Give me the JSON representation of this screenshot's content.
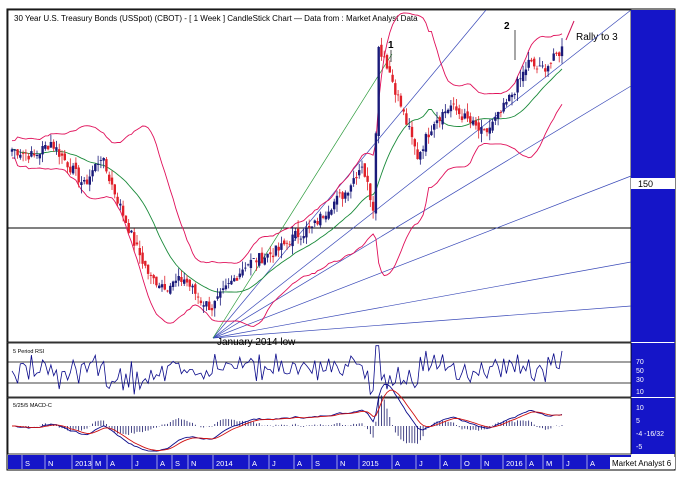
{
  "header": {
    "title": "30 Year U.S. Treasury Bonds (USSpot) (CBOT) - [ 1 Week ] CandleStick Chart — Data from : Market Analyst Data"
  },
  "price_pane": {
    "y_tick": "150",
    "annotations": {
      "wave1": "1",
      "wave2": "2",
      "rally": "Rally to 3",
      "low": "January 2014 low"
    }
  },
  "rsi_pane": {
    "title": "5 Period RSI",
    "ticks": [
      "70",
      "50",
      "30",
      "10"
    ]
  },
  "macd_pane": {
    "title": "5/25/5 MACD-C",
    "ticks": [
      "10",
      "5",
      "-4 -16/32",
      "-5"
    ]
  },
  "time_axis": {
    "labels": [
      "S",
      "N",
      "2013",
      "M",
      "A",
      "J",
      "A",
      "S",
      "N",
      "2014",
      "A",
      "J",
      "A",
      "S",
      "N",
      "2015",
      "A",
      "J",
      "A",
      "O",
      "N",
      "2016",
      "A",
      "M",
      "J",
      "A"
    ],
    "footer": "Market Analyst 6"
  },
  "colors": {
    "bear_candle": "#e0202a",
    "bull_candle": "#1a1a7a",
    "bollinger": "#e0105a",
    "moving_average": "#1a8a3a",
    "gann_fan": "#3a4ab8",
    "gann_steep": "#2a9a3a",
    "indicator_line": "#0a0a8a",
    "macd_signal": "#d01010",
    "axis_band": "#1515c8"
  },
  "chart_data": {
    "type": "candlestick",
    "timeframe": "1 Week",
    "x_labels": [
      "S",
      "N",
      "2013",
      "M",
      "A",
      "J",
      "A",
      "S",
      "N",
      "2014",
      "A",
      "J",
      "A",
      "S",
      "N",
      "2015",
      "A",
      "J",
      "A",
      "O",
      "N",
      "2016",
      "A",
      "M",
      "J",
      "A"
    ],
    "y_tick_labels": [
      "150"
    ],
    "indicators": [
      "Bollinger Bands",
      "Moving Average",
      "Gann Fan",
      "5 Period RSI",
      "5/25/5 MACD-C"
    ],
    "rsi_levels": [
      70,
      50,
      30,
      10
    ],
    "macd_levels": [
      10,
      5,
      -5
    ],
    "price_path": [
      {
        "w": 0,
        "c": 154
      },
      {
        "w": 8,
        "c": 153
      },
      {
        "w": 14,
        "c": 155
      },
      {
        "w": 20,
        "c": 152
      },
      {
        "w": 26,
        "c": 149
      },
      {
        "w": 32,
        "c": 153
      },
      {
        "w": 38,
        "c": 147
      },
      {
        "w": 44,
        "c": 141
      },
      {
        "w": 50,
        "c": 136
      },
      {
        "w": 56,
        "c": 135
      },
      {
        "w": 62,
        "c": 136
      },
      {
        "w": 68,
        "c": 133
      },
      {
        "w": 72,
        "c": 132
      },
      {
        "w": 78,
        "c": 135
      },
      {
        "w": 84,
        "c": 138
      },
      {
        "w": 90,
        "c": 139
      },
      {
        "w": 96,
        "c": 140
      },
      {
        "w": 102,
        "c": 142
      },
      {
        "w": 108,
        "c": 143
      },
      {
        "w": 114,
        "c": 146
      },
      {
        "w": 120,
        "c": 148
      },
      {
        "w": 126,
        "c": 152
      },
      {
        "w": 130,
        "c": 146
      },
      {
        "w": 132,
        "c": 168
      },
      {
        "w": 134,
        "c": 167
      },
      {
        "w": 140,
        "c": 160
      },
      {
        "w": 146,
        "c": 153
      },
      {
        "w": 152,
        "c": 158
      },
      {
        "w": 158,
        "c": 160
      },
      {
        "w": 164,
        "c": 158
      },
      {
        "w": 170,
        "c": 156
      },
      {
        "w": 176,
        "c": 159
      },
      {
        "w": 182,
        "c": 163
      },
      {
        "w": 186,
        "c": 166
      },
      {
        "w": 190,
        "c": 165
      },
      {
        "w": 194,
        "c": 166
      },
      {
        "w": 198,
        "c": 168
      }
    ]
  }
}
